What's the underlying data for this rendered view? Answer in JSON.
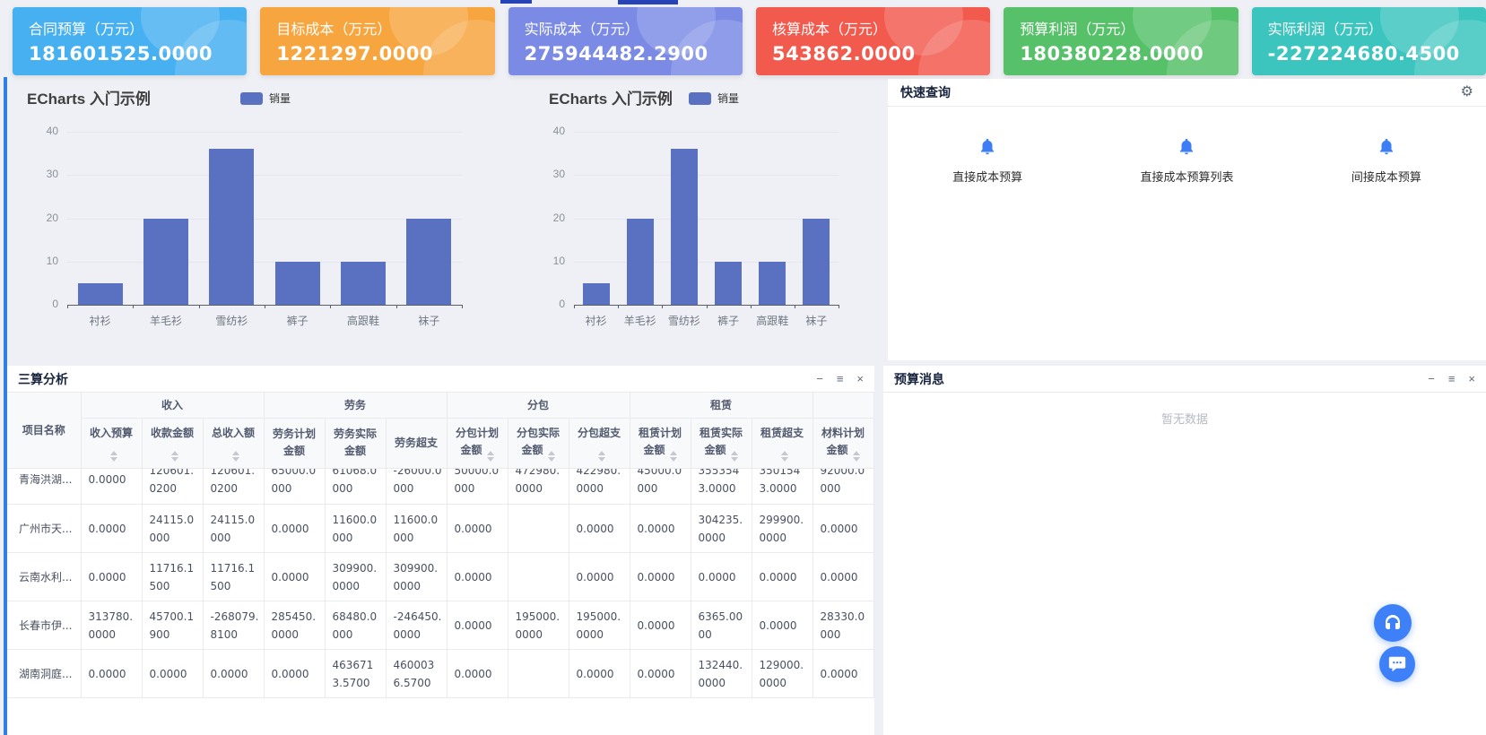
{
  "page": {
    "background": "#eef0f5",
    "left_edge_accent": "#2f80e4"
  },
  "stat_cards": [
    {
      "label": "合同预算（万元）",
      "value": "181601525.0000",
      "color": "#47b0f1"
    },
    {
      "label": "目标成本（万元）",
      "value": "1221297.0000",
      "color": "#f7a53f"
    },
    {
      "label": "实际成本（万元）",
      "value": "275944482.2900",
      "color": "#7b8be5"
    },
    {
      "label": "核算成本（万元）",
      "value": "543862.0000",
      "color": "#f25a4d"
    },
    {
      "label": "预算利润（万元）",
      "value": "180380228.0000",
      "color": "#56c169"
    },
    {
      "label": "实际利润（万元）",
      "value": "-227224680.4500",
      "color": "#3cc5be"
    }
  ],
  "chart_data": [
    {
      "type": "bar",
      "title": "ECharts 入门示例",
      "categories": [
        "衬衫",
        "羊毛衫",
        "雪纺衫",
        "裤子",
        "高跟鞋",
        "袜子"
      ],
      "series": [
        {
          "name": "销量",
          "values": [
            5,
            20,
            36,
            10,
            10,
            20
          ],
          "color": "#5a70c1"
        }
      ],
      "xlabel": "",
      "ylabel": "",
      "ylim": [
        0,
        40
      ],
      "yticks": [
        0,
        10,
        20,
        30,
        40
      ],
      "grid": true,
      "legend_position": "top"
    },
    {
      "type": "bar",
      "title": "ECharts 入门示例",
      "categories": [
        "衬衫",
        "羊毛衫",
        "雪纺衫",
        "裤子",
        "高跟鞋",
        "袜子"
      ],
      "series": [
        {
          "name": "销量",
          "values": [
            5,
            20,
            36,
            10,
            10,
            20
          ],
          "color": "#5a70c1"
        }
      ],
      "xlabel": "",
      "ylabel": "",
      "ylim": [
        0,
        40
      ],
      "yticks": [
        0,
        10,
        20,
        30,
        40
      ],
      "grid": true,
      "legend_position": "top"
    }
  ],
  "quick_query": {
    "title": "快速查询",
    "gear_icon": "⚙",
    "icon_color": "#3d7ef7",
    "items": [
      {
        "icon": "bell-icon",
        "label": "直接成本预算"
      },
      {
        "icon": "bell-icon",
        "label": "直接成本预算列表"
      },
      {
        "icon": "bell-icon",
        "label": "间接成本预算"
      }
    ]
  },
  "window_controls": {
    "minimize": "−",
    "list": "≡",
    "close": "×"
  },
  "analysis_panel": {
    "title": "三算分析",
    "table": {
      "groups": [
        {
          "label": "收入",
          "span": 3
        },
        {
          "label": "劳务",
          "span": 3
        },
        {
          "label": "分包",
          "span": 3
        },
        {
          "label": "租赁",
          "span": 3
        },
        {
          "label": "",
          "span": 1
        }
      ],
      "columns": [
        {
          "lines": [
            "项目名称"
          ],
          "sort": "none"
        },
        {
          "lines": [
            "收入预算"
          ],
          "sort": "below"
        },
        {
          "lines": [
            "收款金额"
          ],
          "sort": "below"
        },
        {
          "lines": [
            "总收入额"
          ],
          "sort": "below"
        },
        {
          "lines": [
            "劳务计划",
            "金额"
          ],
          "sort": "none"
        },
        {
          "lines": [
            "劳务实际",
            "金额"
          ],
          "sort": "none"
        },
        {
          "lines": [
            "劳务超支"
          ],
          "sort": "none"
        },
        {
          "lines": [
            "分包计划",
            "金额"
          ],
          "sort": "inline"
        },
        {
          "lines": [
            "分包实际",
            "金额"
          ],
          "sort": "inline"
        },
        {
          "lines": [
            "分包超支"
          ],
          "sort": "below"
        },
        {
          "lines": [
            "租赁计划",
            "金额"
          ],
          "sort": "inline"
        },
        {
          "lines": [
            "租赁实际",
            "金额"
          ],
          "sort": "inline"
        },
        {
          "lines": [
            "租赁超支"
          ],
          "sort": "below"
        },
        {
          "lines": [
            "材料计划",
            "金额"
          ],
          "sort": "inline"
        }
      ],
      "rows": [
        {
          "name": "青海洪湖...",
          "values": [
            "0.0000",
            "120601.0200",
            "120601.0200",
            "65000.0000",
            "61068.0000",
            "-26000.0000",
            "50000.0000",
            "472980.0000",
            "422980.0000",
            "45000.0000",
            "3553543.0000",
            "3501543.0000",
            "92000.0000"
          ]
        },
        {
          "name": "广州市天...",
          "values": [
            "0.0000",
            "24115.0000",
            "24115.0000",
            "0.0000",
            "11600.0000",
            "11600.0000",
            "0.0000",
            "",
            "0.0000",
            "0.0000",
            "304235.0000",
            "299900.0000",
            "0.0000"
          ]
        },
        {
          "name": "云南水利...",
          "values": [
            "0.0000",
            "11716.1500",
            "11716.1500",
            "0.0000",
            "309900.0000",
            "309900.0000",
            "0.0000",
            "",
            "0.0000",
            "0.0000",
            "0.0000",
            "0.0000",
            "0.0000"
          ]
        },
        {
          "name": "长春市伊...",
          "values": [
            "313780.0000",
            "45700.1900",
            "-268079.8100",
            "285450.0000",
            "68480.0000",
            "-246450.0000",
            "0.0000",
            "195000.0000",
            "195000.0000",
            "0.0000",
            "6365.0000",
            "0.0000",
            "28330.0000"
          ]
        },
        {
          "name": "湖南洞庭...",
          "values": [
            "0.0000",
            "0.0000",
            "0.0000",
            "0.0000",
            "4636713.5700",
            "4600036.5700",
            "0.0000",
            "",
            "0.0000",
            "0.0000",
            "132440.0000",
            "129000.0000",
            "0.0000"
          ]
        }
      ]
    }
  },
  "messages_panel": {
    "title": "预算消息",
    "empty_text": "暂无数据"
  },
  "float_buttons": [
    {
      "icon": "headset-icon",
      "color": "#3d80f7"
    },
    {
      "icon": "chat-icon",
      "color": "#3d80f7"
    }
  ]
}
